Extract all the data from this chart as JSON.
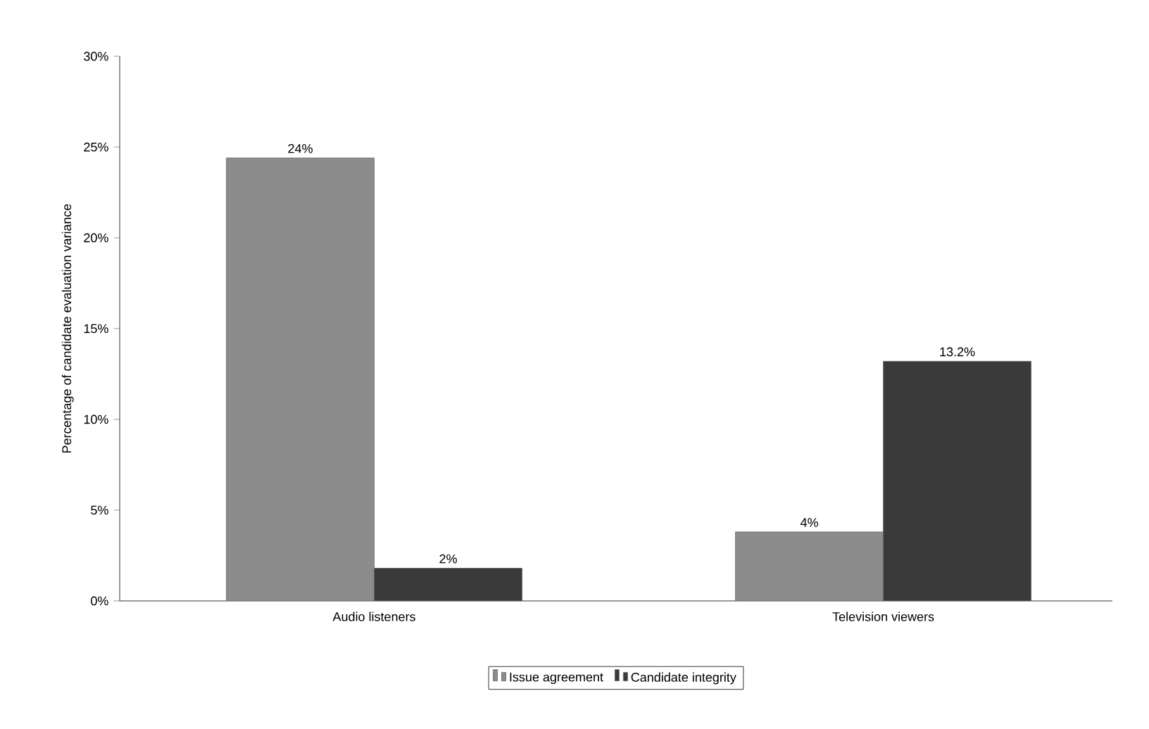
{
  "chart_data": {
    "type": "bar",
    "ylabel": "Percentage of candidate evaluation variance",
    "categories": [
      "Audio listeners",
      "Television viewers"
    ],
    "series": [
      {
        "name": "Issue agreement",
        "color": "#8c8c8c",
        "values": [
          24.4,
          3.8
        ],
        "value_labels": [
          "24%",
          "4%"
        ]
      },
      {
        "name": "Candidate integrity",
        "color": "#3a3a3a",
        "values": [
          1.8,
          13.2
        ],
        "value_labels": [
          "2%",
          "13.2%"
        ]
      }
    ],
    "ylim": [
      0,
      30
    ],
    "yticks": [
      {
        "value": 0,
        "label": "0%"
      },
      {
        "value": 5,
        "label": "5%"
      },
      {
        "value": 10,
        "label": "10%"
      },
      {
        "value": 15,
        "label": "15%"
      },
      {
        "value": 20,
        "label": "20%"
      },
      {
        "value": 25,
        "label": "25%"
      },
      {
        "value": 30,
        "label": "30%"
      }
    ],
    "legend": "bottom"
  }
}
